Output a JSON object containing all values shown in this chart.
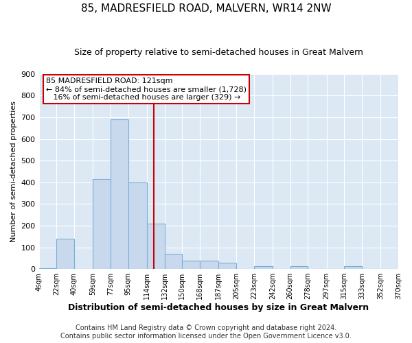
{
  "title": "85, MADRESFIELD ROAD, MALVERN, WR14 2NW",
  "subtitle": "Size of property relative to semi-detached houses in Great Malvern",
  "xlabel": "Distribution of semi-detached houses by size in Great Malvern",
  "ylabel": "Number of semi-detached properties",
  "bin_edges": [
    4,
    22,
    40,
    59,
    77,
    95,
    114,
    132,
    150,
    168,
    187,
    205,
    223,
    242,
    260,
    278,
    297,
    315,
    333,
    352,
    370
  ],
  "bin_counts": [
    5,
    140,
    0,
    415,
    690,
    400,
    210,
    70,
    40,
    40,
    28,
    0,
    12,
    0,
    12,
    0,
    0,
    12,
    0,
    0
  ],
  "bar_color": "#c8d9ee",
  "bar_edge_color": "#7aafd4",
  "vline_x": 121,
  "vline_color": "#cc0000",
  "annotation_line1": "85 MADRESFIELD ROAD: 121sqm",
  "annotation_line2": "← 84% of semi-detached houses are smaller (1,728)",
  "annotation_line3": "   16% of semi-detached houses are larger (329) →",
  "annotation_box_color": "#ffffff",
  "annotation_box_edge_color": "#cc0000",
  "ylim": [
    0,
    900
  ],
  "yticks": [
    0,
    100,
    200,
    300,
    400,
    500,
    600,
    700,
    800,
    900
  ],
  "tick_labels": [
    "4sqm",
    "22sqm",
    "40sqm",
    "59sqm",
    "77sqm",
    "95sqm",
    "114sqm",
    "132sqm",
    "150sqm",
    "168sqm",
    "187sqm",
    "205sqm",
    "223sqm",
    "242sqm",
    "260sqm",
    "278sqm",
    "297sqm",
    "315sqm",
    "333sqm",
    "352sqm",
    "370sqm"
  ],
  "footer_text": "Contains HM Land Registry data © Crown copyright and database right 2024.\nContains public sector information licensed under the Open Government Licence v3.0.",
  "figure_bg": "#ffffff",
  "axes_bg": "#dce9f5",
  "grid_color": "#ffffff",
  "title_fontsize": 11,
  "subtitle_fontsize": 9,
  "xlabel_fontsize": 9,
  "ylabel_fontsize": 8,
  "footer_fontsize": 7
}
